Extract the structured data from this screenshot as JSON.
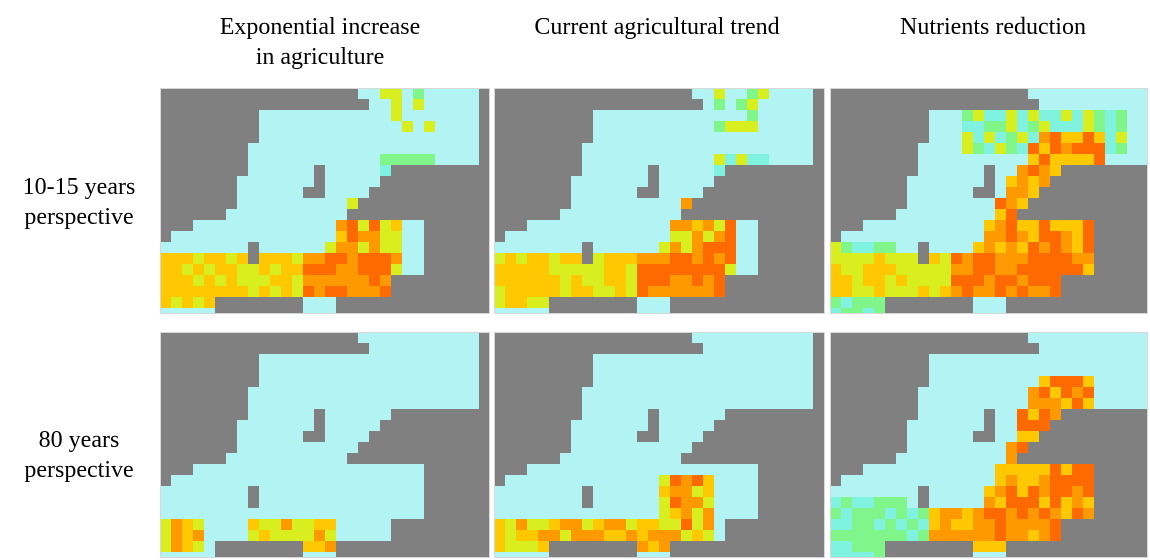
{
  "columns": [
    {
      "line1": "Exponential increase",
      "line2": "in agriculture"
    },
    {
      "line1": "Current agricultural trend",
      "line2": ""
    },
    {
      "line1": "Nutrients reduction",
      "line2": ""
    }
  ],
  "rows": [
    {
      "line1": "10-15 years",
      "line2": "perspective"
    },
    {
      "line1": "80 years",
      "line2": "perspective"
    }
  ],
  "colors": {
    "land": "#808080",
    "water": "#b2f4f4",
    "frame": "#d8d8d8",
    "scale": [
      "#80f2e0",
      "#7ff58a",
      "#d8ee1e",
      "#ffc800",
      "#ff9900",
      "#ff6a00",
      "#ff3b00"
    ]
  }
}
